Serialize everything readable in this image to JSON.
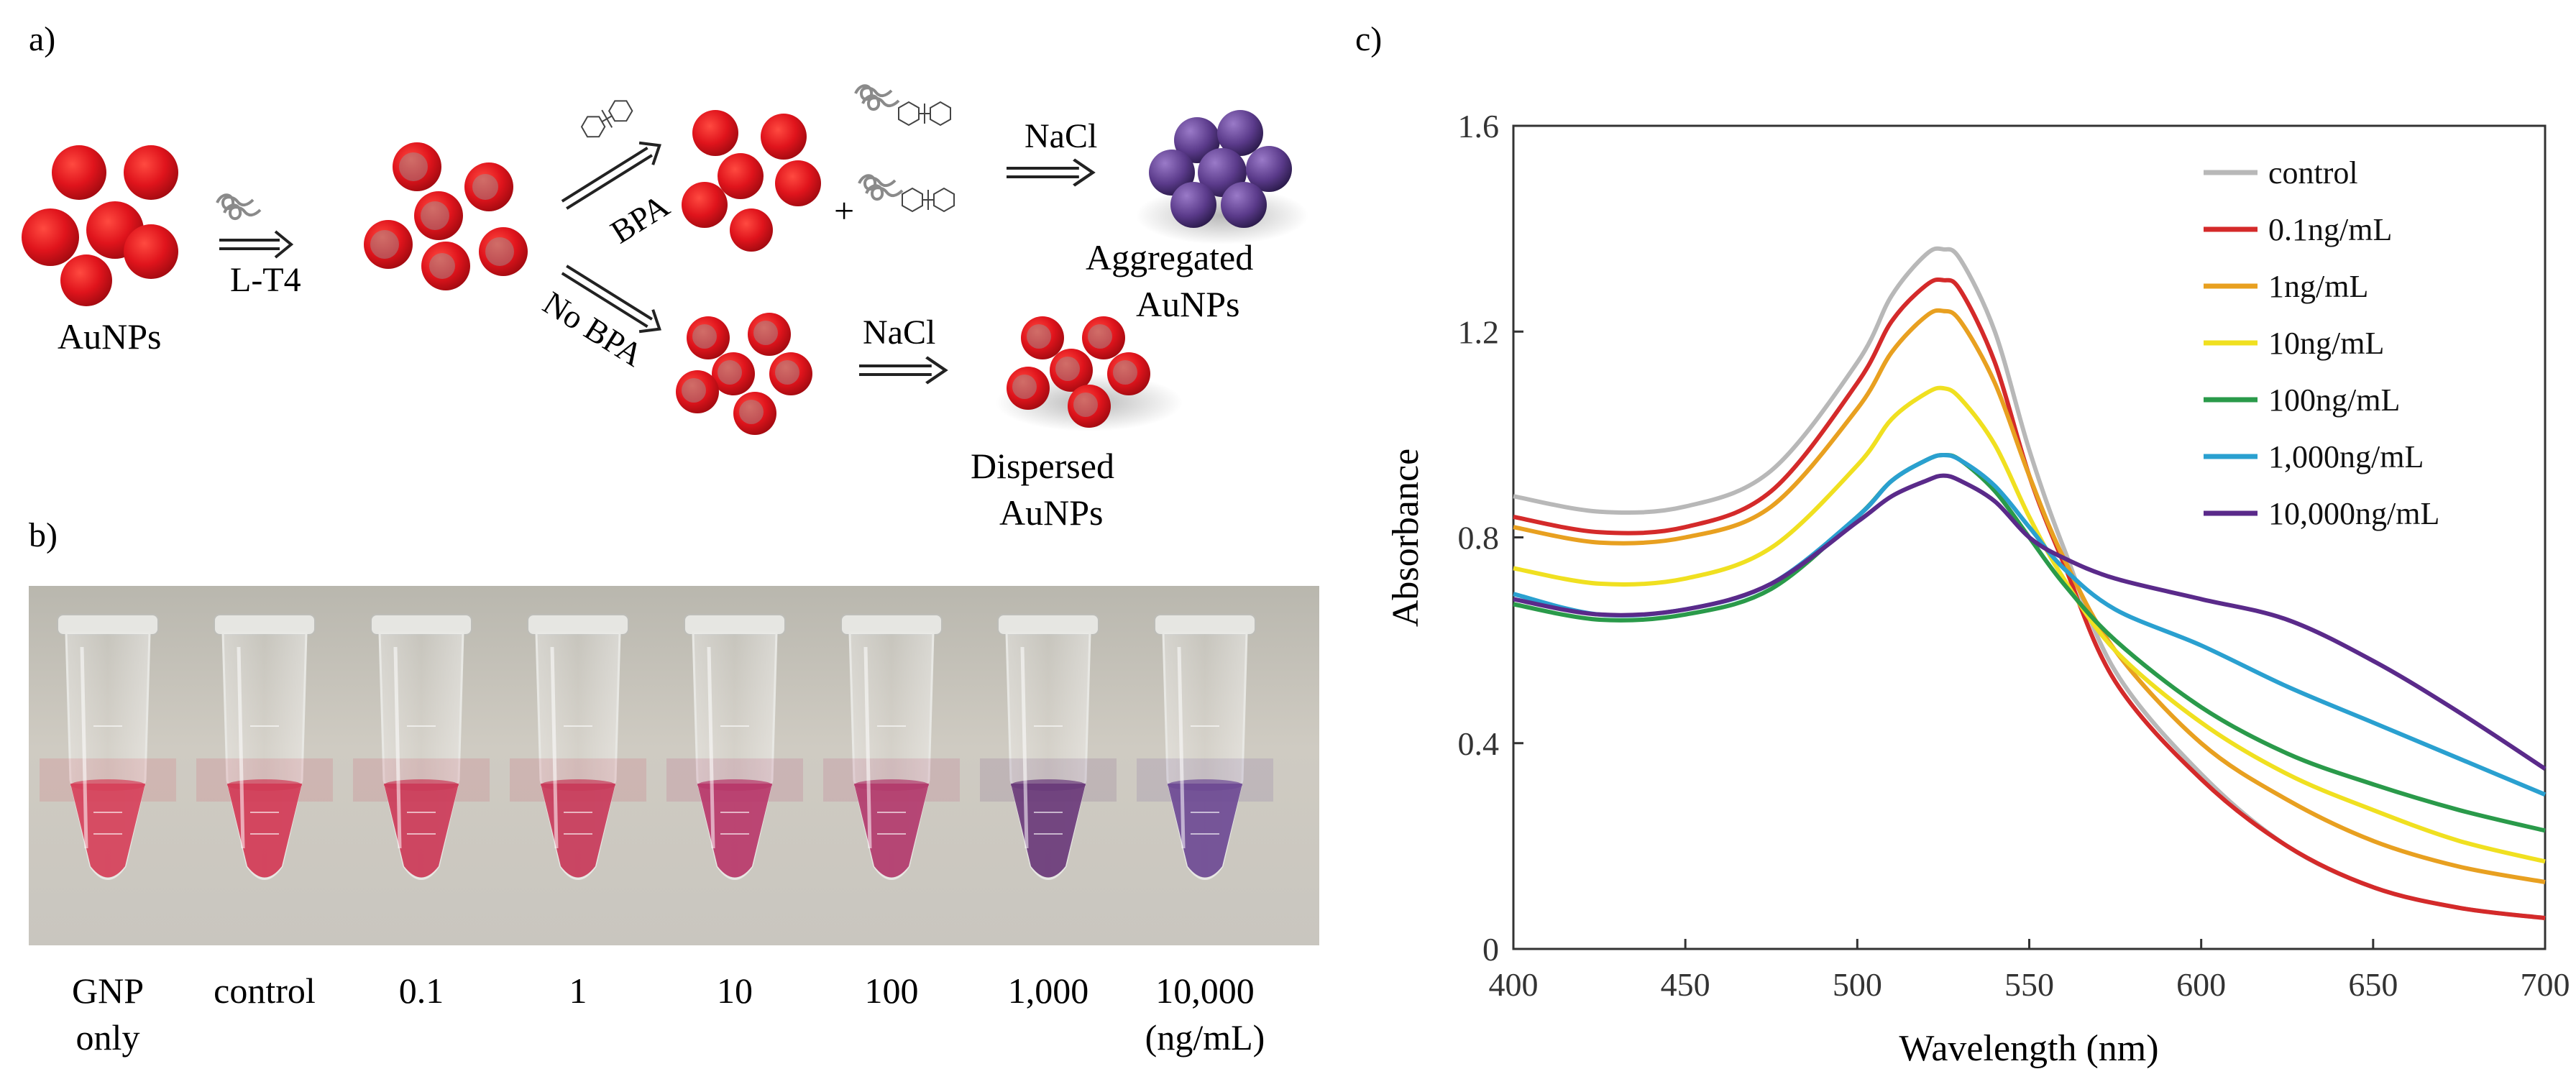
{
  "panel_a": {
    "label": "a)",
    "aunps_label": "AuNPs",
    "lt4_label": "L-T4",
    "bpa_label": "BPA",
    "no_bpa_label": "No BPA",
    "plus_label": "+",
    "nacl_top_label": "NaCl",
    "nacl_bottom_label": "NaCl",
    "aggregated_line1": "Aggregated",
    "aggregated_line2": "AuNPs",
    "dispersed_line1": "Dispersed",
    "dispersed_line2": "AuNPs",
    "colors": {
      "aunp_red": "#e0141c",
      "aggregated_purple": "#5a3a8a",
      "aptamer_gray": "#888888"
    }
  },
  "panel_b": {
    "label": "b)",
    "tubes": [
      {
        "label_line1": "GNP",
        "label_line2": "only",
        "liquid_color": "#d6405a"
      },
      {
        "label_line1": "control",
        "label_line2": "",
        "liquid_color": "#d23a56"
      },
      {
        "label_line1": "0.1",
        "label_line2": "",
        "liquid_color": "#cc3a58"
      },
      {
        "label_line1": "1",
        "label_line2": "",
        "liquid_color": "#c83a5a"
      },
      {
        "label_line1": "10",
        "label_line2": "",
        "liquid_color": "#b8386a"
      },
      {
        "label_line1": "100",
        "label_line2": "",
        "liquid_color": "#b23a6c"
      },
      {
        "label_line1": "1,000",
        "label_line2": "",
        "liquid_color": "#6a3a7a"
      },
      {
        "label_line1": "10,000",
        "label_line2": "(ng/mL)",
        "liquid_color": "#6e4a94"
      }
    ],
    "colors": {
      "photo_background": "#cbc8c0",
      "photo_top": "#b9b7ae"
    }
  },
  "panel_c": {
    "label": "c)"
  },
  "chart_data": {
    "type": "line",
    "title": "",
    "xlabel": "Wavelength (nm)",
    "ylabel": "Absorbance",
    "xlim": [
      400,
      700
    ],
    "ylim": [
      0,
      1.6
    ],
    "x_ticks": [
      "400",
      "450",
      "500",
      "550",
      "600",
      "650",
      "700"
    ],
    "y_ticks": [
      "0",
      "0.4",
      "0.8",
      "1.2",
      "1.6"
    ],
    "grid": false,
    "legend_position": "top-right",
    "x": [
      400,
      425,
      450,
      475,
      500,
      510,
      520,
      525,
      530,
      540,
      550,
      560,
      575,
      600,
      625,
      650,
      675,
      700
    ],
    "series": [
      {
        "name": "control",
        "color": "#b8b8b8",
        "values": [
          0.88,
          0.85,
          0.86,
          0.93,
          1.14,
          1.27,
          1.35,
          1.36,
          1.34,
          1.2,
          0.97,
          0.78,
          0.54,
          0.34,
          0.2,
          0.12,
          0.08,
          0.06
        ]
      },
      {
        "name": "0.1ng/mL",
        "color": "#d42a2a",
        "values": [
          0.84,
          0.81,
          0.82,
          0.89,
          1.1,
          1.22,
          1.29,
          1.3,
          1.28,
          1.14,
          0.92,
          0.75,
          0.52,
          0.33,
          0.2,
          0.12,
          0.08,
          0.06
        ]
      },
      {
        "name": "1ng/mL",
        "color": "#e8a020",
        "values": [
          0.82,
          0.79,
          0.8,
          0.86,
          1.05,
          1.16,
          1.23,
          1.24,
          1.22,
          1.1,
          0.92,
          0.76,
          0.58,
          0.4,
          0.29,
          0.21,
          0.16,
          0.13
        ]
      },
      {
        "name": "10ng/mL",
        "color": "#f0e020",
        "values": [
          0.74,
          0.71,
          0.72,
          0.78,
          0.94,
          1.03,
          1.08,
          1.09,
          1.07,
          0.98,
          0.84,
          0.72,
          0.58,
          0.44,
          0.34,
          0.27,
          0.21,
          0.17
        ]
      },
      {
        "name": "100ng/mL",
        "color": "#2a9a4a",
        "values": [
          0.67,
          0.64,
          0.65,
          0.7,
          0.84,
          0.91,
          0.95,
          0.96,
          0.95,
          0.89,
          0.8,
          0.71,
          0.6,
          0.47,
          0.38,
          0.32,
          0.27,
          0.23
        ]
      },
      {
        "name": "1,000ng/mL",
        "color": "#2aa0d0",
        "values": [
          0.69,
          0.65,
          0.66,
          0.71,
          0.84,
          0.91,
          0.95,
          0.96,
          0.95,
          0.9,
          0.82,
          0.74,
          0.66,
          0.59,
          0.51,
          0.44,
          0.37,
          0.3
        ]
      },
      {
        "name": "10,000ng/mL",
        "color": "#5a2a8a",
        "values": [
          0.68,
          0.65,
          0.66,
          0.71,
          0.83,
          0.88,
          0.91,
          0.92,
          0.91,
          0.87,
          0.8,
          0.76,
          0.72,
          0.68,
          0.64,
          0.56,
          0.46,
          0.35
        ]
      }
    ]
  }
}
